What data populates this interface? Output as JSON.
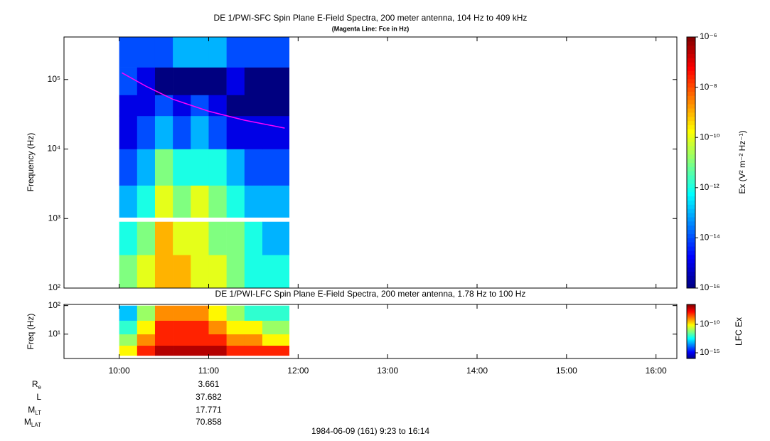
{
  "chart_data": [
    {
      "type": "heatmap",
      "title": "DE 1/PWI-SFC  Spin Plane E-Field Spectra, 200 meter antenna, 104 Hz to 409 kHz",
      "subtitle": "(Magenta Line: Fce in Hz)",
      "ylabel": "Frequency (Hz)",
      "x": [
        10.0,
        10.2,
        10.4,
        10.6,
        10.8,
        11.0,
        11.2,
        11.4,
        11.6,
        11.9
      ],
      "y": [
        100,
        300,
        900,
        1040,
        3000,
        10000,
        30000,
        60000,
        150000,
        409000
      ],
      "z": [
        [
          1e-11,
          1e-10,
          1e-09,
          1e-09,
          1e-10,
          1e-10,
          1e-11,
          1e-12,
          1e-12
        ],
        [
          1e-12,
          1e-11,
          1e-09,
          1e-10,
          1e-10,
          1e-11,
          1e-11,
          1e-12,
          1e-13
        ],
        [
          null,
          null,
          null,
          null,
          null,
          null,
          null,
          null,
          null
        ],
        [
          1e-13,
          1e-12,
          1e-10,
          1e-11,
          1e-10,
          1e-11,
          1e-12,
          1e-13,
          1e-13
        ],
        [
          1e-14,
          1e-13,
          1e-11,
          1e-12,
          1e-12,
          1e-12,
          1e-13,
          1e-14,
          1e-14
        ],
        [
          1e-15,
          1e-14,
          1e-13,
          1e-14,
          1e-13,
          1e-14,
          1e-15,
          1e-15,
          1e-15
        ],
        [
          1e-15,
          1e-15,
          1e-14,
          1e-15,
          1e-14,
          1e-15,
          1e-16,
          1e-16,
          1e-16
        ],
        [
          1e-14,
          1e-15,
          1e-16,
          1e-16,
          1e-16,
          1e-16,
          1e-15,
          1e-16,
          1e-16
        ],
        [
          1e-14,
          1e-14,
          1e-14,
          1e-13,
          1e-13,
          1e-13,
          1e-14,
          1e-14,
          1e-14
        ]
      ],
      "xlim": [
        9.383,
        16.233
      ],
      "ylim": [
        100,
        409000
      ],
      "ylog": true,
      "yticks": [
        {
          "value": 100,
          "label": "10²"
        },
        {
          "value": 1000,
          "label": "10³"
        },
        {
          "value": 10000,
          "label": "10⁴"
        },
        {
          "value": 100000,
          "label": "10⁵"
        }
      ],
      "zlim": [
        1e-16,
        1e-06
      ],
      "zlog": true,
      "zticks": [
        {
          "value": 1e-06,
          "label": "10⁻⁶"
        },
        {
          "value": 1e-08,
          "label": "10⁻⁸"
        },
        {
          "value": 1e-10,
          "label": "10⁻¹⁰"
        },
        {
          "value": 1e-12,
          "label": "10⁻¹²"
        },
        {
          "value": 1e-14,
          "label": "10⁻¹⁴"
        },
        {
          "value": 1e-16,
          "label": "10⁻¹⁶"
        }
      ],
      "zlabel": "Ex (V² m⁻² Hz⁻¹)",
      "line": {
        "x": [
          10.03,
          10.3,
          10.6,
          11.0,
          11.4,
          11.85
        ],
        "values": [
          125000,
          80000,
          52000,
          35000,
          26000,
          20000
        ],
        "color": "#ff00ff"
      }
    },
    {
      "type": "heatmap",
      "title": "DE 1/PWI-LFC  Spin Plane E-Field Spectra, 200 meter antenna, 1.78 Hz to 100 Hz",
      "ylabel": "Freq (Hz)",
      "x": [
        10.0,
        10.2,
        10.4,
        10.6,
        10.8,
        11.0,
        11.2,
        11.4,
        11.6,
        11.9
      ],
      "y": [
        1.78,
        4,
        10,
        30,
        100
      ],
      "z": [
        [
          1e-10,
          1e-08,
          1e-07,
          1e-07,
          1e-07,
          1e-07,
          1e-08,
          1e-08,
          1e-08
        ],
        [
          1e-11,
          1e-09,
          1e-08,
          1e-08,
          1e-08,
          1e-08,
          1e-09,
          1e-09,
          1e-10
        ],
        [
          1e-12,
          1e-10,
          1e-08,
          1e-08,
          1e-08,
          1e-09,
          1e-10,
          1e-10,
          1e-11
        ],
        [
          1e-13,
          1e-11,
          1e-09,
          1e-09,
          1e-09,
          1e-10,
          1e-11,
          1e-12,
          1e-12
        ]
      ],
      "xlim": [
        9.383,
        16.233
      ],
      "xticks": [
        {
          "value": 10,
          "label": "10:00"
        },
        {
          "value": 11,
          "label": "11:00"
        },
        {
          "value": 12,
          "label": "12:00"
        },
        {
          "value": 13,
          "label": "13:00"
        },
        {
          "value": 14,
          "label": "14:00"
        },
        {
          "value": 15,
          "label": "15:00"
        },
        {
          "value": 16,
          "label": "16:00"
        }
      ],
      "ylim": [
        1.4,
        110
      ],
      "ylog": true,
      "yticks": [
        {
          "value": 10,
          "label": "10¹"
        },
        {
          "value": 100,
          "label": "10²"
        }
      ],
      "zlim": [
        1e-16,
        3.16e-07
      ],
      "zlog": true,
      "zticks": [
        {
          "value": 1e-10,
          "label": "10⁻¹⁰"
        },
        {
          "value": 1e-15,
          "label": "10⁻¹⁵"
        }
      ],
      "zlabel": "LFC Ex"
    }
  ],
  "ephemeris": {
    "labels": [
      {
        "text": "R",
        "sub": "e"
      },
      {
        "text": "L"
      },
      {
        "text": "M",
        "sub": "LT"
      },
      {
        "text": "M",
        "sub": "LAT"
      }
    ],
    "values": [
      3.661,
      37.682,
      17.771,
      70.858
    ]
  },
  "footer": "1984-06-09 (161) 9:23 to 16:14"
}
